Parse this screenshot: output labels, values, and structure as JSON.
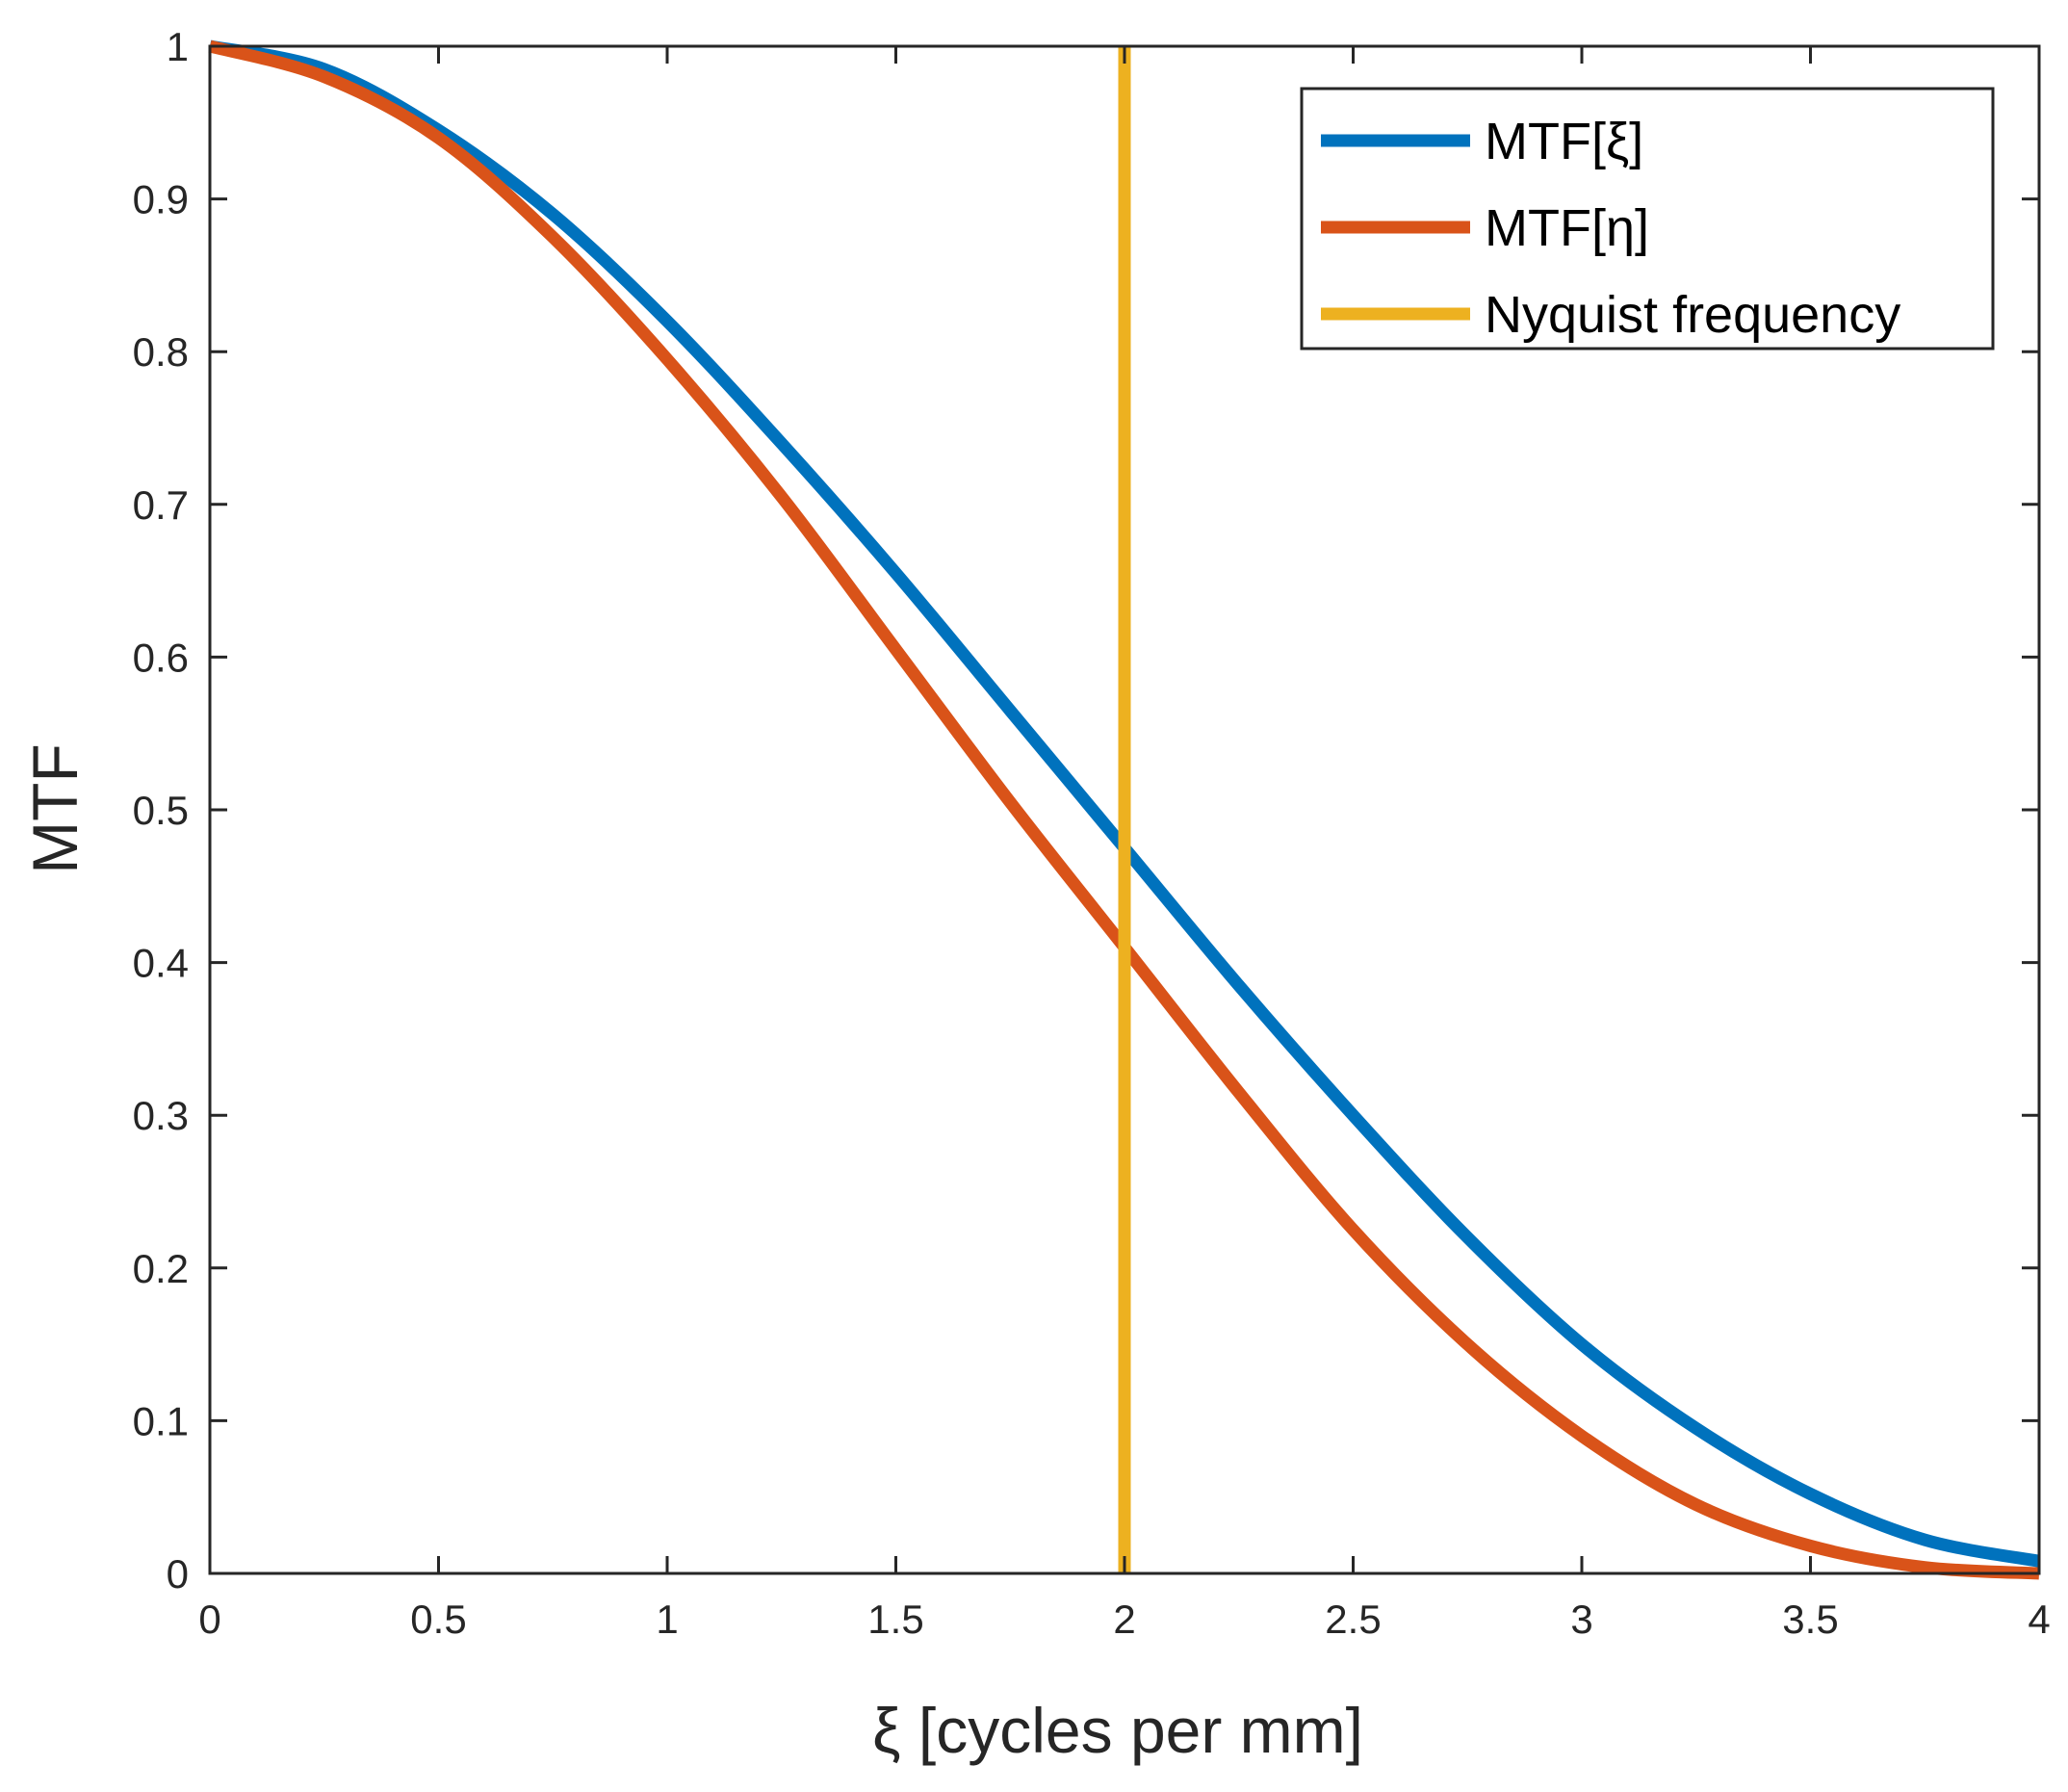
{
  "chart_data": {
    "type": "line",
    "title": "",
    "xlabel": "ξ [cycles per mm]",
    "ylabel": "MTF",
    "xlim": [
      0,
      4
    ],
    "ylim": [
      0,
      1
    ],
    "grid": false,
    "legend_position": "top-right",
    "x_ticks": [
      0,
      0.5,
      1,
      1.5,
      2,
      2.5,
      3,
      3.5,
      4
    ],
    "x_tick_labels": [
      "0",
      "0.5",
      "1",
      "1.5",
      "2",
      "2.5",
      "3",
      "3.5",
      "4"
    ],
    "y_ticks": [
      0,
      0.1,
      0.2,
      0.3,
      0.4,
      0.5,
      0.6,
      0.7,
      0.8,
      0.9,
      1
    ],
    "y_tick_labels": [
      "0",
      "0.1",
      "0.2",
      "0.3",
      "0.4",
      "0.5",
      "0.6",
      "0.7",
      "0.8",
      "0.9",
      "1"
    ],
    "series": [
      {
        "name": "MTF[ξ]",
        "color": "#0072BD",
        "x": [
          0,
          0.25,
          0.5,
          0.75,
          1,
          1.25,
          1.5,
          1.75,
          2,
          2.25,
          2.5,
          2.75,
          3,
          3.25,
          3.5,
          3.75,
          4
        ],
        "y": [
          1.0,
          0.985,
          0.945,
          0.89,
          0.82,
          0.74,
          0.655,
          0.565,
          0.475,
          0.385,
          0.3,
          0.22,
          0.15,
          0.095,
          0.052,
          0.022,
          0.008
        ]
      },
      {
        "name": "MTF[η]",
        "color": "#D95319",
        "x": [
          0,
          0.25,
          0.5,
          0.75,
          1,
          1.25,
          1.5,
          1.75,
          2,
          2.25,
          2.5,
          2.75,
          3,
          3.25,
          3.5,
          3.75,
          4
        ],
        "y": [
          1.0,
          0.98,
          0.94,
          0.875,
          0.795,
          0.705,
          0.605,
          0.505,
          0.41,
          0.315,
          0.225,
          0.15,
          0.09,
          0.045,
          0.018,
          0.004,
          0.0
        ]
      },
      {
        "name": "Nyquist frequency",
        "color": "#EDB120",
        "x": [
          2,
          2
        ],
        "y": [
          0,
          1
        ]
      }
    ]
  }
}
